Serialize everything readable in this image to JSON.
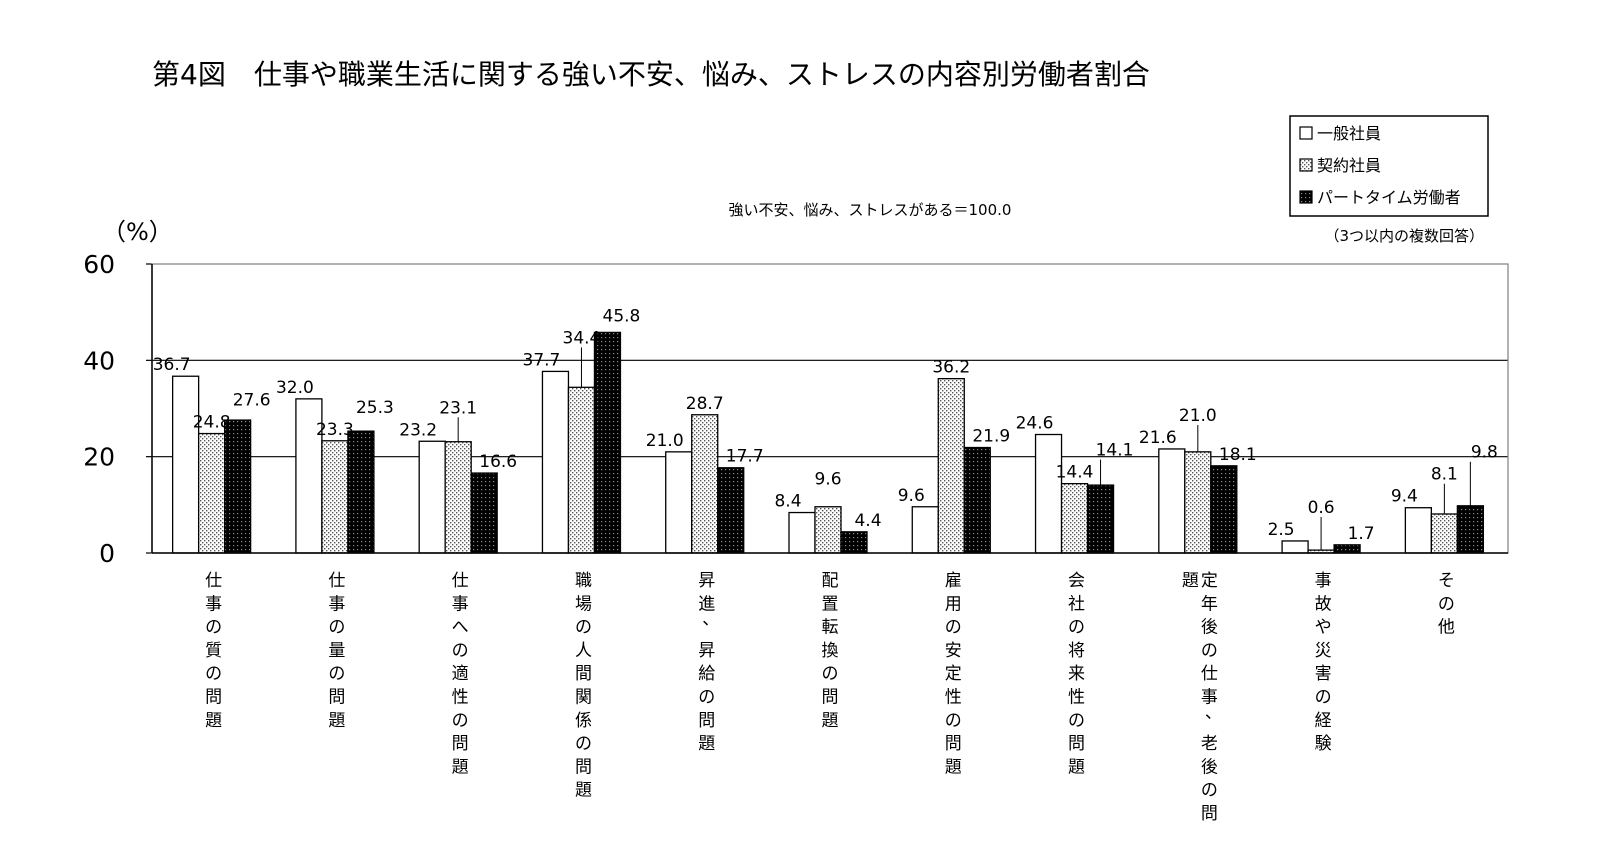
{
  "chart_data": {
    "type": "bar",
    "title": "第4図　仕事や職業生活に関する強い不安、悩み、ストレスの内容別労働者割合",
    "subtitle": "強い不安、悩み、ストレスがある＝100.0",
    "ylabel": "（%）",
    "ylim": [
      0,
      60
    ],
    "yticks": [
      "0",
      "20",
      "40",
      "60"
    ],
    "grid": true,
    "legend_position": "top-right",
    "legend_note": "（3つ以内の複数回答）",
    "categories": [
      "仕事の質の問題",
      "仕事の量の問題",
      "仕事への適性の問題",
      "職場の人間関係の問題",
      "昇進、昇給の問題",
      "配置転換の問題",
      "雇用の安定性の問題",
      "会社の将来性の問題",
      "定年後の仕事、老後の問題",
      "事故や災害の経験",
      "その他"
    ],
    "category_columns": [
      [
        "仕事の質の問題"
      ],
      [
        "仕事の量の問題"
      ],
      [
        "仕事への適性の問題"
      ],
      [
        "職場の人間関係の問題"
      ],
      [
        "昇進、昇給の問題"
      ],
      [
        "配置転換の問題"
      ],
      [
        "雇用の安定性の問題"
      ],
      [
        "会社の将来性の問題"
      ],
      [
        "定年後の仕事、老後の問",
        "題"
      ],
      [
        "事故や災害の経験"
      ],
      [
        "その他"
      ]
    ],
    "series": [
      {
        "name": "一般社員",
        "pattern": "white",
        "values": [
          36.7,
          32.0,
          23.2,
          37.7,
          21.0,
          8.4,
          9.6,
          24.6,
          21.6,
          2.5,
          9.4
        ],
        "labels": [
          "36.7",
          "32.0",
          "23.2",
          "37.7",
          "21.0",
          "8.4",
          "9.6",
          "24.6",
          "21.6",
          "2.5",
          "9.4"
        ]
      },
      {
        "name": "契約社員",
        "pattern": "dotted",
        "values": [
          24.8,
          23.3,
          23.1,
          34.4,
          28.7,
          9.6,
          36.2,
          14.4,
          21.0,
          0.6,
          8.1
        ],
        "labels": [
          "24.8",
          "23.3",
          "23.1",
          "34.4",
          "28.7",
          "9.6",
          "36.2",
          "14.4",
          "21.0",
          "0.6",
          "8.1"
        ]
      },
      {
        "name": "パートタイム労働者",
        "pattern": "dark",
        "values": [
          27.6,
          25.3,
          16.6,
          45.8,
          17.7,
          4.4,
          21.9,
          14.1,
          18.1,
          1.7,
          9.8
        ],
        "labels": [
          "27.6",
          "25.3",
          "16.6",
          "45.8",
          "17.7",
          "4.4",
          "21.9",
          "14.1",
          "18.1",
          "1.7",
          "9.8"
        ]
      }
    ],
    "colors": {
      "white": "#ffffff",
      "dotted_fg": "#555555",
      "dark_bg": "#000000",
      "dark_fg": "#888888",
      "axis": "#000000"
    }
  }
}
